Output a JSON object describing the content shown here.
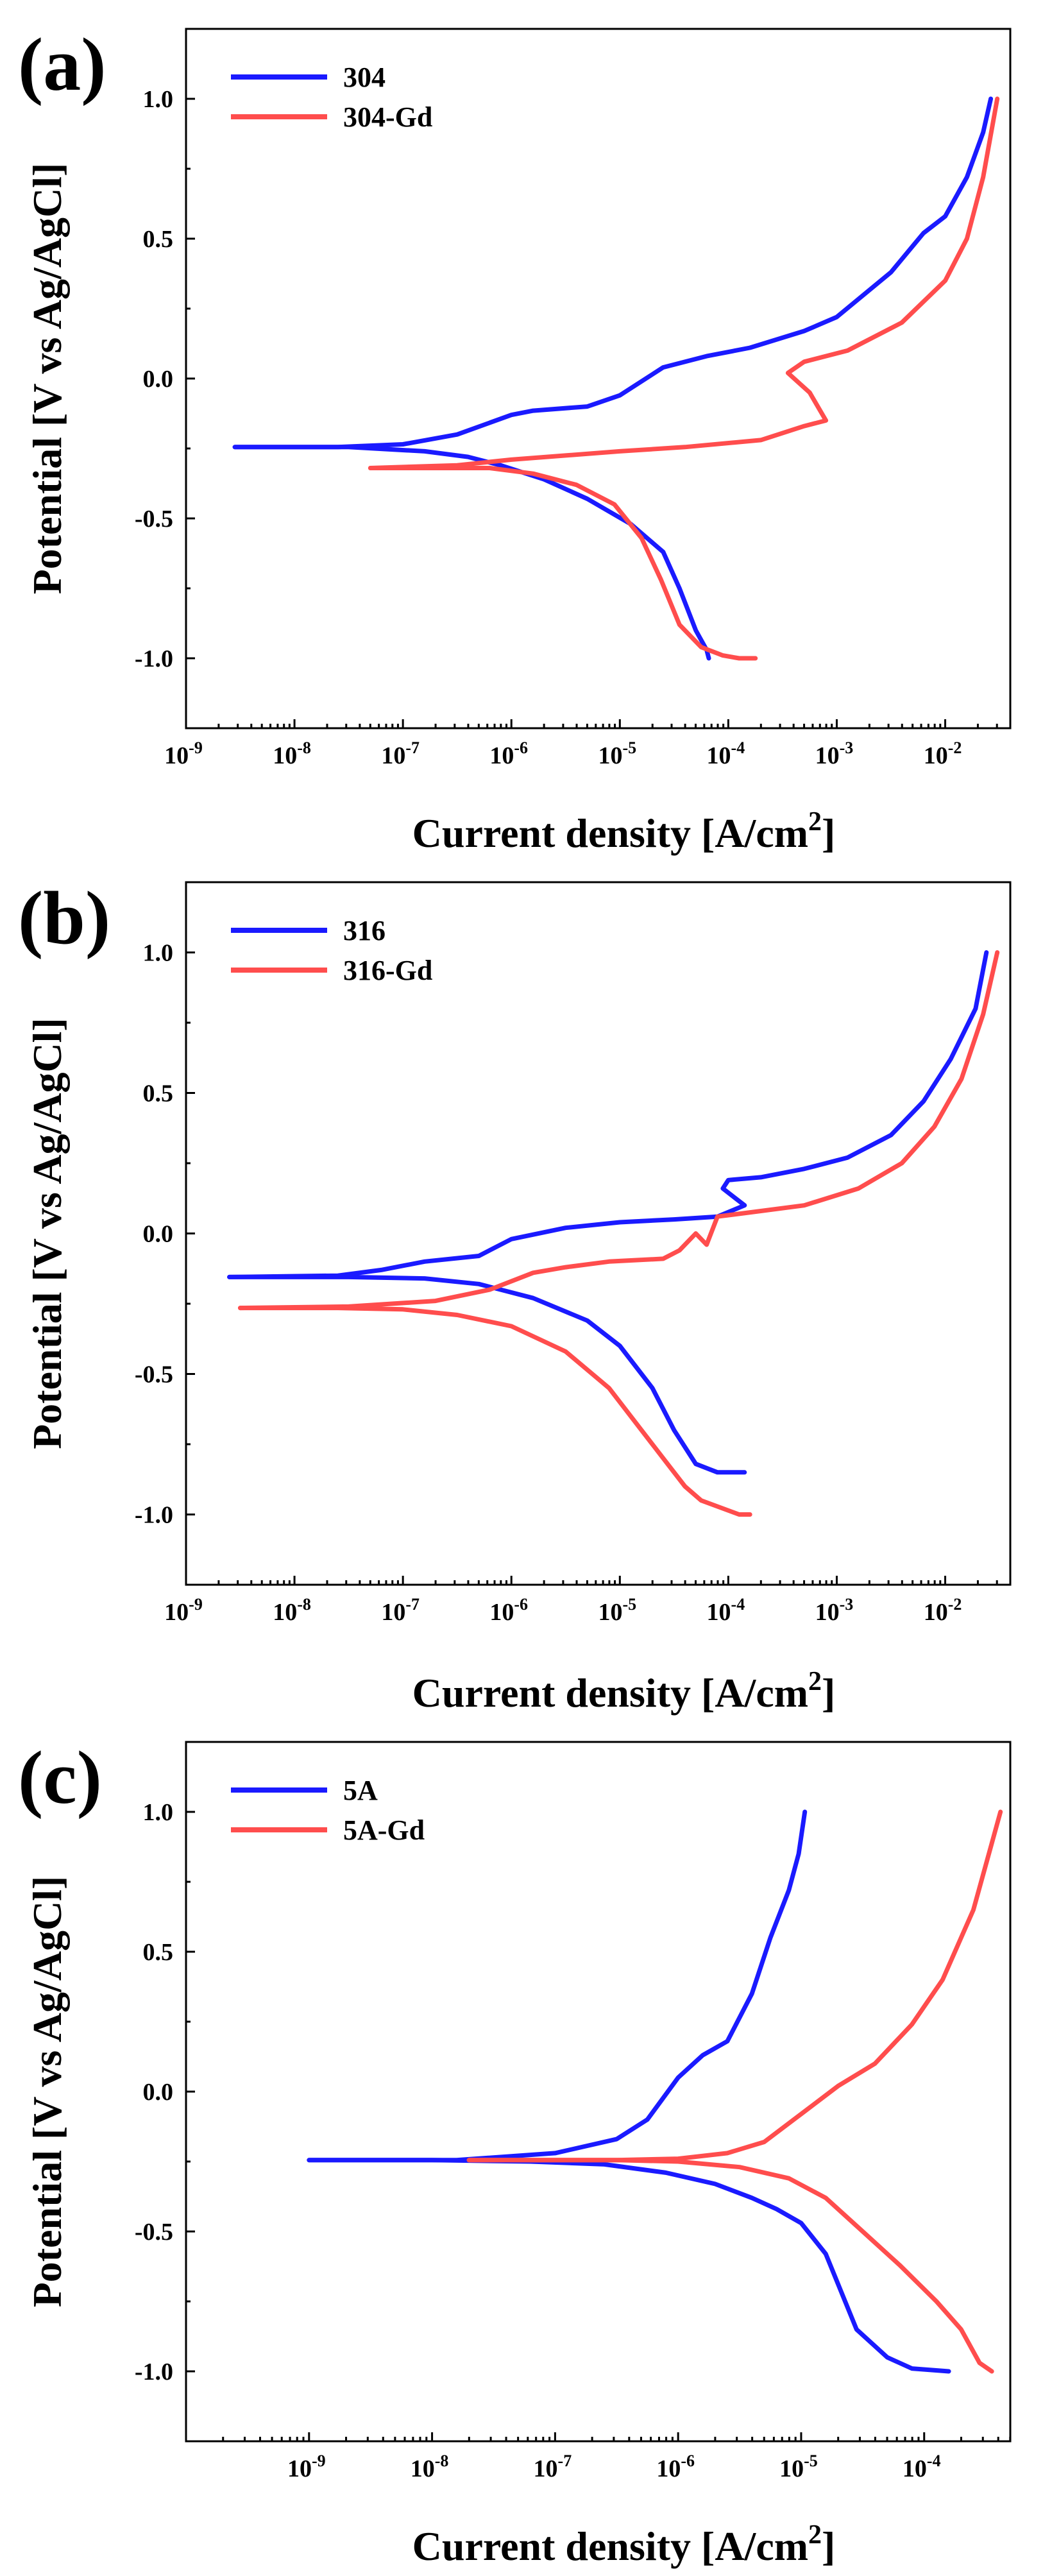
{
  "colors": {
    "series_1": "#1a1aff",
    "series_2": "#ff4d4d"
  },
  "chart_data": [
    {
      "panel_label": "(a)",
      "type": "line",
      "xscale": "log",
      "xlim_exp": [
        -9,
        -1.4
      ],
      "ylim": [
        -1.25,
        1.25
      ],
      "xlabel": "Current density [A/cm",
      "xlabel_sup": "2",
      "xlabel_end": "]",
      "ylabel": "Potential [V vs Ag/AgCl]",
      "legend_position": "top-left",
      "x_ticks": [
        {
          "base": "10",
          "exp": "-9",
          "value": -9
        },
        {
          "base": "10",
          "exp": "-8",
          "value": -8
        },
        {
          "base": "10",
          "exp": "-7",
          "value": -7
        },
        {
          "base": "10",
          "exp": "-6",
          "value": -6
        },
        {
          "base": "10",
          "exp": "-5",
          "value": -5
        },
        {
          "base": "10",
          "exp": "-4",
          "value": -4
        },
        {
          "base": "10",
          "exp": "-3",
          "value": -3
        },
        {
          "base": "10",
          "exp": "-2",
          "value": -2
        }
      ],
      "y_ticks": [
        {
          "label": "1.0",
          "value": 1.0
        },
        {
          "label": "0.5",
          "value": 0.5
        },
        {
          "label": "0.0",
          "value": 0.0
        },
        {
          "label": "-0.5",
          "value": -0.5
        },
        {
          "label": "-1.0",
          "value": -1.0
        }
      ],
      "series": [
        {
          "name": "304",
          "color_key": "series_1",
          "log_x": [
            -8.55,
            -7.5,
            -6.8,
            -6.4,
            -6.1,
            -5.7,
            -5.3,
            -4.9,
            -4.6,
            -4.45,
            -4.3,
            -4.2,
            -4.18
          ],
          "y": [
            -0.245,
            -0.245,
            -0.26,
            -0.28,
            -0.31,
            -0.36,
            -0.43,
            -0.52,
            -0.62,
            -0.75,
            -0.9,
            -0.97,
            -1.0
          ],
          "branch": [
            {
              "log_x": [
                -8.55,
                -7.6,
                -7.0,
                -6.5,
                -6.0,
                -5.8,
                -5.3,
                -5.0,
                -4.6,
                -4.2,
                -3.8,
                -3.3,
                -3.0,
                -2.5,
                -2.2,
                -2.0,
                -1.8,
                -1.65,
                -1.58
              ],
              "y": [
                -0.245,
                -0.245,
                -0.235,
                -0.2,
                -0.13,
                -0.115,
                -0.1,
                -0.06,
                0.04,
                0.08,
                0.11,
                0.17,
                0.22,
                0.38,
                0.52,
                0.58,
                0.72,
                0.88,
                1.0
              ]
            }
          ]
        },
        {
          "name": "304-Gd",
          "color_key": "series_2",
          "log_x": [
            -7.3,
            -6.8,
            -6.2,
            -5.8,
            -5.4,
            -5.05,
            -4.8,
            -4.62,
            -4.45,
            -4.25,
            -4.05,
            -3.9,
            -3.75
          ],
          "y": [
            -0.32,
            -0.32,
            -0.32,
            -0.34,
            -0.38,
            -0.45,
            -0.57,
            -0.72,
            -0.88,
            -0.96,
            -0.99,
            -1.0,
            -1.0
          ],
          "branch": [
            {
              "log_x": [
                -7.3,
                -6.5,
                -6.0,
                -5.5,
                -5.0,
                -4.4,
                -3.7,
                -3.3,
                -3.1,
                -3.25,
                -3.45,
                -3.3,
                -2.9,
                -2.4,
                -2.0,
                -1.8,
                -1.65,
                -1.52
              ],
              "y": [
                -0.32,
                -0.31,
                -0.29,
                -0.275,
                -0.26,
                -0.245,
                -0.22,
                -0.17,
                -0.15,
                -0.05,
                0.02,
                0.06,
                0.1,
                0.2,
                0.35,
                0.5,
                0.72,
                1.0
              ]
            }
          ]
        }
      ]
    },
    {
      "panel_label": "(b)",
      "type": "line",
      "xscale": "log",
      "xlim_exp": [
        -9,
        -1.4
      ],
      "ylim": [
        -1.25,
        1.25
      ],
      "xlabel": "Current density [A/cm",
      "xlabel_sup": "2",
      "xlabel_end": "]",
      "ylabel": "Potential [V vs Ag/AgCl]",
      "legend_position": "top-left",
      "x_ticks": [
        {
          "base": "10",
          "exp": "-9",
          "value": -9
        },
        {
          "base": "10",
          "exp": "-8",
          "value": -8
        },
        {
          "base": "10",
          "exp": "-7",
          "value": -7
        },
        {
          "base": "10",
          "exp": "-6",
          "value": -6
        },
        {
          "base": "10",
          "exp": "-5",
          "value": -5
        },
        {
          "base": "10",
          "exp": "-4",
          "value": -4
        },
        {
          "base": "10",
          "exp": "-3",
          "value": -3
        },
        {
          "base": "10",
          "exp": "-2",
          "value": -2
        }
      ],
      "y_ticks": [
        {
          "label": "1.0",
          "value": 1.0
        },
        {
          "label": "0.5",
          "value": 0.5
        },
        {
          "label": "0.0",
          "value": 0.0
        },
        {
          "label": "-0.5",
          "value": -0.5
        },
        {
          "label": "-1.0",
          "value": -1.0
        }
      ],
      "series": [
        {
          "name": "316",
          "color_key": "series_1",
          "log_x": [
            -8.6,
            -7.5,
            -6.8,
            -6.3,
            -5.8,
            -5.3,
            -5.0,
            -4.7,
            -4.5,
            -4.3,
            -4.1,
            -3.85
          ],
          "y": [
            -0.155,
            -0.155,
            -0.16,
            -0.18,
            -0.23,
            -0.31,
            -0.4,
            -0.55,
            -0.7,
            -0.82,
            -0.85,
            -0.85
          ],
          "branch": [
            {
              "log_x": [
                -8.6,
                -7.6,
                -7.2,
                -6.8,
                -6.3,
                -6.0,
                -5.5,
                -5.0,
                -4.5,
                -4.1,
                -3.85,
                -4.05,
                -4.0,
                -3.7,
                -3.3,
                -2.9,
                -2.5,
                -2.2,
                -1.95,
                -1.72,
                -1.62
              ],
              "y": [
                -0.155,
                -0.15,
                -0.13,
                -0.1,
                -0.08,
                -0.02,
                0.02,
                0.04,
                0.05,
                0.06,
                0.1,
                0.16,
                0.19,
                0.2,
                0.23,
                0.27,
                0.35,
                0.47,
                0.62,
                0.8,
                1.0
              ]
            }
          ]
        },
        {
          "name": "316-Gd",
          "color_key": "series_2",
          "log_x": [
            -8.5,
            -7.6,
            -7.0,
            -6.5,
            -6.0,
            -5.5,
            -5.1,
            -4.8,
            -4.6,
            -4.4,
            -4.25,
            -3.9,
            -3.8
          ],
          "y": [
            -0.265,
            -0.265,
            -0.27,
            -0.29,
            -0.33,
            -0.42,
            -0.55,
            -0.7,
            -0.8,
            -0.9,
            -0.95,
            -1.0,
            -1.0
          ],
          "branch": [
            {
              "log_x": [
                -8.5,
                -7.5,
                -6.7,
                -6.2,
                -5.8,
                -5.5,
                -5.1,
                -4.6,
                -4.45,
                -4.3,
                -4.2,
                -4.1,
                -3.7,
                -3.3,
                -2.8,
                -2.4,
                -2.1,
                -1.85,
                -1.65,
                -1.52
              ],
              "y": [
                -0.265,
                -0.26,
                -0.24,
                -0.2,
                -0.14,
                -0.12,
                -0.1,
                -0.09,
                -0.06,
                0.0,
                -0.04,
                0.06,
                0.08,
                0.1,
                0.16,
                0.25,
                0.38,
                0.55,
                0.78,
                1.0
              ]
            }
          ]
        }
      ]
    },
    {
      "panel_label": "(c)",
      "type": "line",
      "xscale": "log",
      "xlim_exp": [
        -10,
        -3.3
      ],
      "ylim": [
        -1.25,
        1.25
      ],
      "xlabel": "Current density [A/cm",
      "xlabel_sup": "2",
      "xlabel_end": "]",
      "ylabel": "Potential [V vs Ag/AgCl]",
      "legend_position": "top-left",
      "x_ticks": [
        {
          "base": "10",
          "exp": "-9",
          "value": -9
        },
        {
          "base": "10",
          "exp": "-8",
          "value": -8
        },
        {
          "base": "10",
          "exp": "-7",
          "value": -7
        },
        {
          "base": "10",
          "exp": "-6",
          "value": -6
        },
        {
          "base": "10",
          "exp": "-5",
          "value": -5
        },
        {
          "base": "10",
          "exp": "-4",
          "value": -4
        }
      ],
      "y_ticks": [
        {
          "label": "1.0",
          "value": 1.0
        },
        {
          "label": "0.5",
          "value": 0.5
        },
        {
          "label": "0.0",
          "value": 0.0
        },
        {
          "label": "-0.5",
          "value": -0.5
        },
        {
          "label": "-1.0",
          "value": -1.0
        }
      ],
      "series": [
        {
          "name": "5A",
          "color_key": "series_1",
          "log_x": [
            -9.0,
            -8.0,
            -7.2,
            -6.6,
            -6.1,
            -5.7,
            -5.4,
            -5.2,
            -5.0,
            -4.8,
            -4.55,
            -4.3,
            -4.1,
            -3.8
          ],
          "y": [
            -0.245,
            -0.245,
            -0.25,
            -0.26,
            -0.29,
            -0.33,
            -0.38,
            -0.42,
            -0.47,
            -0.58,
            -0.85,
            -0.95,
            -0.99,
            -1.0
          ],
          "branch": [
            {
              "log_x": [
                -9.0,
                -7.8,
                -7.0,
                -6.5,
                -6.25,
                -6.0,
                -5.8,
                -5.6,
                -5.4,
                -5.25,
                -5.1,
                -5.02,
                -4.97
              ],
              "y": [
                -0.245,
                -0.245,
                -0.22,
                -0.17,
                -0.1,
                0.05,
                0.13,
                0.18,
                0.35,
                0.55,
                0.72,
                0.85,
                1.0
              ]
            }
          ]
        },
        {
          "name": "5A-Gd",
          "color_key": "series_2",
          "log_x": [
            -7.7,
            -7.0,
            -6.5,
            -6.0,
            -5.5,
            -5.1,
            -4.8,
            -4.5,
            -4.2,
            -3.9,
            -3.7,
            -3.55,
            -3.45
          ],
          "y": [
            -0.245,
            -0.245,
            -0.245,
            -0.25,
            -0.27,
            -0.31,
            -0.38,
            -0.5,
            -0.62,
            -0.75,
            -0.85,
            -0.97,
            -1.0
          ],
          "branch": [
            {
              "log_x": [
                -7.7,
                -6.5,
                -6.0,
                -5.6,
                -5.3,
                -5.0,
                -4.7,
                -4.4,
                -4.1,
                -3.85,
                -3.6,
                -3.38
              ],
              "y": [
                -0.245,
                -0.245,
                -0.24,
                -0.22,
                -0.18,
                -0.08,
                0.02,
                0.1,
                0.24,
                0.4,
                0.65,
                1.0
              ]
            }
          ]
        }
      ]
    }
  ]
}
